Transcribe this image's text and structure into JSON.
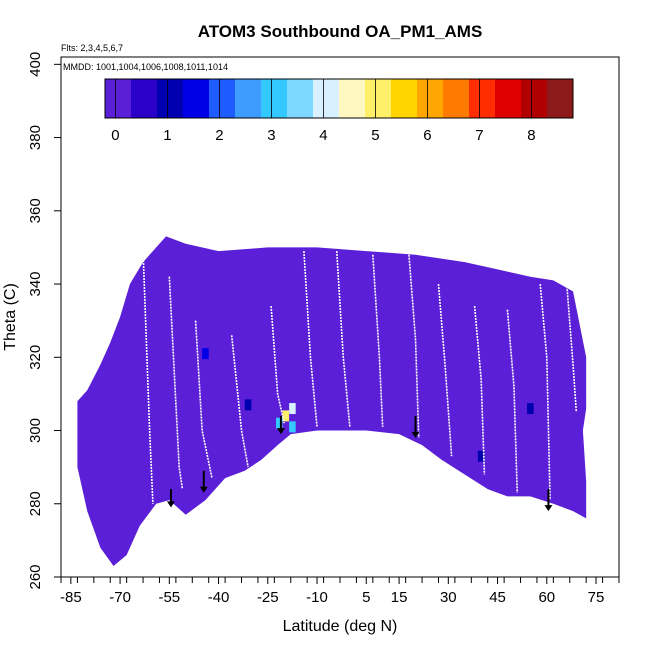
{
  "chart_data": {
    "type": "heatmap",
    "title": "ATOM3 Southbound OA_PM1_AMS",
    "subtitle": "Flts: 2,3,4,5,6,7",
    "annotation": "MMDD: 1001,1004,1006,1008,1011,1014",
    "xlabel": "Latitude (deg N)",
    "ylabel": "Theta (C)",
    "xlim": [
      -88,
      82
    ],
    "ylim": [
      260,
      402
    ],
    "x_ticks": [
      -85,
      -70,
      -55,
      -40,
      -25,
      -10,
      5,
      15,
      30,
      45,
      60,
      75
    ],
    "x_tick_labels": [
      "-85",
      "-70",
      "-55",
      "-40",
      "-25",
      "-10",
      "5",
      "15",
      "30",
      "45",
      "60",
      "75"
    ],
    "y_ticks": [
      260,
      280,
      300,
      320,
      340,
      360,
      380,
      400
    ],
    "y_tick_labels": [
      "260",
      "280",
      "300",
      "320",
      "340",
      "360",
      "380",
      "400"
    ],
    "colorbar": {
      "min": -0.2,
      "max": 8.8,
      "ticks": [
        0,
        1,
        2,
        3,
        4,
        5,
        6,
        7,
        8
      ],
      "tick_labels": [
        "0",
        "1",
        "2",
        "3",
        "4",
        "5",
        "6",
        "7",
        "8"
      ],
      "colors": [
        "#5a1fd6",
        "#2b00c8",
        "#0000b0",
        "#0000e6",
        "#1e5cff",
        "#3f9cff",
        "#33c8ff",
        "#7fd8ff",
        "#d8f0ff",
        "#fff7c0",
        "#fff06a",
        "#ffd400",
        "#ffa600",
        "#ff7a00",
        "#ff2d00",
        "#e00000",
        "#b00000",
        "#8c1a1a"
      ]
    },
    "background_value": 0.1,
    "upper_boundary": [
      [
        -83,
        308
      ],
      [
        -80,
        311
      ],
      [
        -76,
        318
      ],
      [
        -73,
        324
      ],
      [
        -70,
        331
      ],
      [
        -67,
        340
      ],
      [
        -63,
        346
      ],
      [
        -56,
        353
      ],
      [
        -50,
        351
      ],
      [
        -40,
        349
      ],
      [
        -25,
        350
      ],
      [
        -10,
        350
      ],
      [
        5,
        349
      ],
      [
        20,
        348
      ],
      [
        35,
        346
      ],
      [
        45,
        344
      ],
      [
        55,
        342
      ],
      [
        62,
        341
      ],
      [
        68,
        338
      ],
      [
        72,
        320
      ],
      [
        72,
        306
      ],
      [
        71,
        300
      ]
    ],
    "lower_boundary": [
      [
        -83,
        290
      ],
      [
        -80,
        278
      ],
      [
        -76,
        268
      ],
      [
        -72,
        263
      ],
      [
        -68,
        266
      ],
      [
        -64,
        274
      ],
      [
        -59,
        280
      ],
      [
        -55,
        281
      ],
      [
        -50,
        277
      ],
      [
        -44,
        281
      ],
      [
        -38,
        287
      ],
      [
        -32,
        289
      ],
      [
        -27,
        292
      ],
      [
        -22,
        296
      ],
      [
        -18,
        299
      ],
      [
        -10,
        300
      ],
      [
        5,
        300
      ],
      [
        15,
        299
      ],
      [
        22,
        296
      ],
      [
        28,
        292
      ],
      [
        35,
        288
      ],
      [
        42,
        284
      ],
      [
        48,
        282
      ],
      [
        55,
        282
      ],
      [
        62,
        280
      ],
      [
        68,
        278
      ],
      [
        72,
        276
      ],
      [
        72,
        286
      ],
      [
        71,
        300
      ]
    ],
    "high_value_patches": [
      {
        "lat": -19.5,
        "theta": 304,
        "value": 5.0
      },
      {
        "lat": -17.5,
        "theta": 306,
        "value": 3.8
      },
      {
        "lat": -21.5,
        "theta": 302,
        "value": 2.8
      },
      {
        "lat": -17.5,
        "theta": 301,
        "value": 3.2
      },
      {
        "lat": -44,
        "theta": 321,
        "value": 1.6
      },
      {
        "lat": -31,
        "theta": 307,
        "value": 1.2
      },
      {
        "lat": 40,
        "theta": 293,
        "value": 1.1
      },
      {
        "lat": 55,
        "theta": 306,
        "value": 1.0
      }
    ],
    "profile_lines": [
      [
        [
          -63,
          349
        ],
        [
          -61,
          300
        ],
        [
          -60,
          280
        ]
      ],
      [
        [
          -55,
          342
        ],
        [
          -52,
          290
        ],
        [
          -51,
          284
        ]
      ],
      [
        [
          -47,
          330
        ],
        [
          -45,
          300
        ],
        [
          -42,
          287
        ]
      ],
      [
        [
          -36,
          326
        ],
        [
          -33,
          300
        ],
        [
          -31,
          290
        ]
      ],
      [
        [
          -24,
          334
        ],
        [
          -22,
          310
        ],
        [
          -20,
          302
        ]
      ],
      [
        [
          -14,
          349
        ],
        [
          -12,
          320
        ],
        [
          -10,
          301
        ]
      ],
      [
        [
          -4,
          349
        ],
        [
          -2,
          320
        ],
        [
          0,
          301
        ]
      ],
      [
        [
          7,
          348
        ],
        [
          9,
          320
        ],
        [
          10,
          301
        ]
      ],
      [
        [
          18,
          348
        ],
        [
          20,
          325
        ],
        [
          21,
          298
        ]
      ],
      [
        [
          27,
          340
        ],
        [
          29,
          318
        ],
        [
          31,
          293
        ]
      ],
      [
        [
          38,
          334
        ],
        [
          40,
          314
        ],
        [
          41,
          288
        ]
      ],
      [
        [
          48,
          333
        ],
        [
          50,
          312
        ],
        [
          51,
          283
        ]
      ],
      [
        [
          58,
          340
        ],
        [
          60,
          320
        ],
        [
          61,
          281
        ]
      ],
      [
        [
          66,
          341
        ],
        [
          68,
          318
        ],
        [
          69,
          305
        ]
      ]
    ],
    "arrows": [
      {
        "lat": -54.5,
        "theta_top": 284,
        "theta_tip": 279
      },
      {
        "lat": -44.5,
        "theta_top": 289,
        "theta_tip": 283
      },
      {
        "lat": -21,
        "theta_top": 304,
        "theta_tip": 299
      },
      {
        "lat": 20,
        "theta_top": 304,
        "theta_tip": 298
      },
      {
        "lat": 60.5,
        "theta_top": 284,
        "theta_tip": 278
      }
    ]
  }
}
